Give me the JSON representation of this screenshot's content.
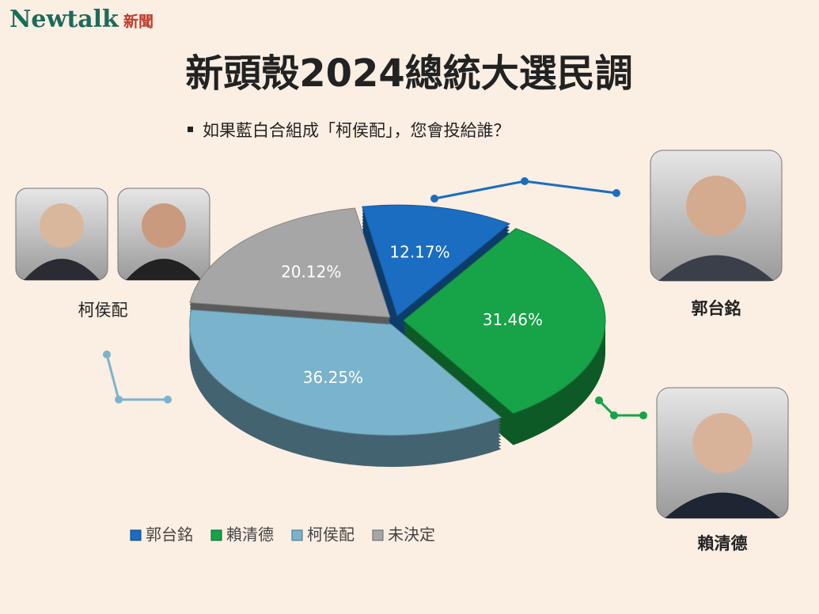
{
  "logo": {
    "name": "Newtalk",
    "suffix": "新聞"
  },
  "chart_data": {
    "type": "pie3d",
    "title": "新頭殼2024總統大選民調",
    "subtitle": "如果藍白合組成「柯侯配」，您會投給誰？",
    "categories": [
      "郭台銘",
      "賴清德",
      "柯侯配",
      "未決定"
    ],
    "values": [
      12.17,
      31.46,
      36.25,
      20.12
    ],
    "value_labels": [
      "12.17%",
      "31.46%",
      "36.25%",
      "20.12%"
    ],
    "colors": [
      "#1a6dc0",
      "#17a347",
      "#7ab4cc",
      "#a6a6a6"
    ],
    "annotations": [
      "柯侯配",
      "郭台銘",
      "賴清德"
    ]
  }
}
